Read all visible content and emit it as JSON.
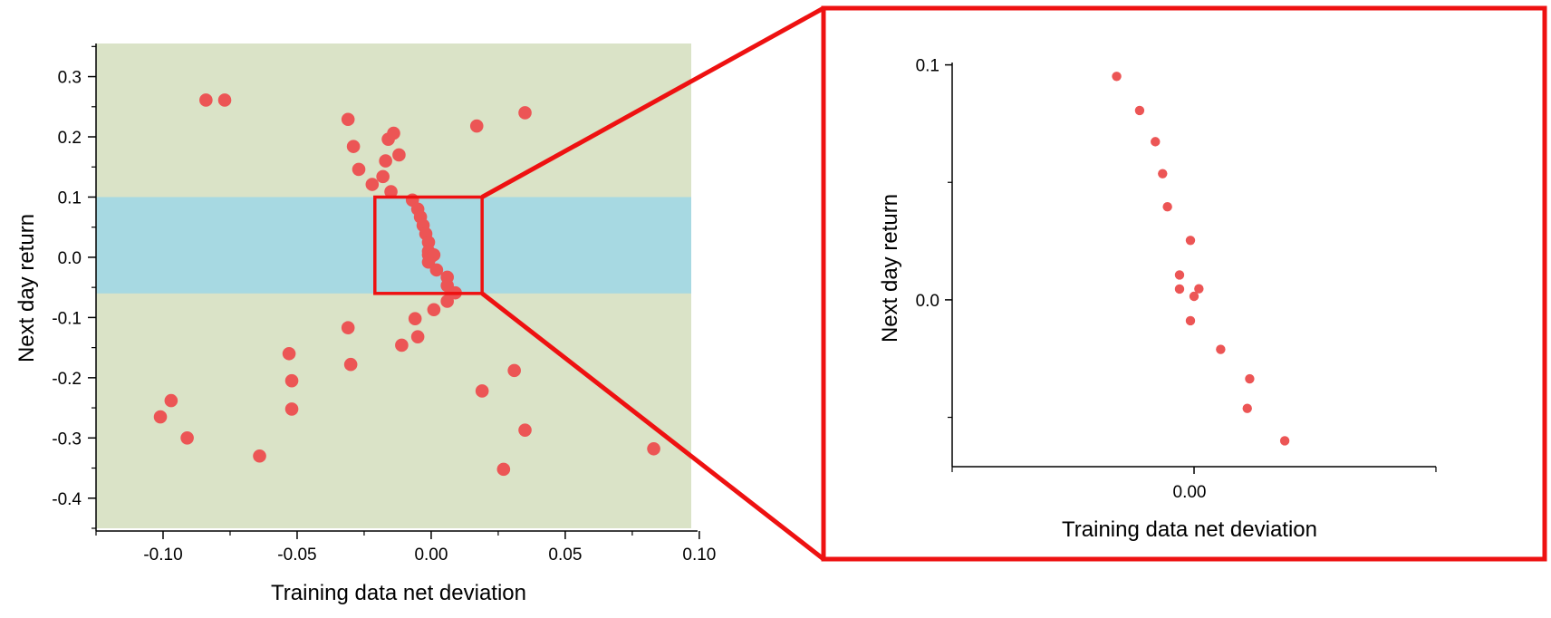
{
  "chart_data": [
    {
      "type": "scatter",
      "panel": "main",
      "xlabel": "Training data net deviation",
      "ylabel": "Next day return",
      "xlim": [
        -0.125,
        0.097
      ],
      "ylim": [
        -0.45,
        0.355
      ],
      "x_ticks": [
        -0.1,
        -0.05,
        0.0,
        0.05,
        0.1
      ],
      "x_tick_labels": [
        "-0.10",
        "-0.05",
        "0.00",
        "0.05",
        "0.10"
      ],
      "y_ticks": [
        0.3,
        0.2,
        0.1,
        0.0,
        -0.1,
        -0.2,
        -0.3,
        -0.4
      ],
      "y_tick_labels": [
        "0.3",
        "0.2",
        "0.1",
        "0.0",
        "-0.1",
        "-0.2",
        "-0.3",
        "-0.4"
      ],
      "background_color": "#dae3c7",
      "band": {
        "y0": -0.06,
        "y1": 0.1,
        "color": "#a7d9e2"
      },
      "zoom_box": {
        "x0": -0.021,
        "x1": 0.019,
        "y0": -0.06,
        "y1": 0.1,
        "color": "#ee1111"
      },
      "marker_color": "#ec5555",
      "grid": false,
      "points": [
        [
          -0.084,
          0.261
        ],
        [
          -0.077,
          0.261
        ],
        [
          -0.101,
          -0.265
        ],
        [
          -0.097,
          -0.238
        ],
        [
          -0.091,
          -0.3
        ],
        [
          -0.064,
          -0.33
        ],
        [
          -0.053,
          -0.16
        ],
        [
          -0.052,
          -0.205
        ],
        [
          -0.052,
          -0.252
        ],
        [
          -0.031,
          0.229
        ],
        [
          -0.029,
          0.184
        ],
        [
          -0.027,
          0.146
        ],
        [
          -0.031,
          -0.117
        ],
        [
          -0.03,
          -0.178
        ],
        [
          -0.022,
          0.121
        ],
        [
          -0.018,
          0.134
        ],
        [
          -0.017,
          0.16
        ],
        [
          -0.016,
          0.196
        ],
        [
          -0.014,
          0.206
        ],
        [
          -0.015,
          0.109
        ],
        [
          -0.012,
          0.17
        ],
        [
          -0.011,
          -0.146
        ],
        [
          -0.007,
          0.095
        ],
        [
          -0.006,
          -0.102
        ],
        [
          -0.005,
          -0.132
        ],
        [
          -0.005,
          0.08
        ],
        [
          -0.004,
          0.067
        ],
        [
          -0.003,
          0.053
        ],
        [
          -0.002,
          0.039
        ],
        [
          -0.001,
          0.025
        ],
        [
          -0.001,
          0.01
        ],
        [
          -0.001,
          0.004
        ],
        [
          0.0,
          0.001
        ],
        [
          0.001,
          0.004
        ],
        [
          -0.001,
          -0.008
        ],
        [
          0.002,
          -0.021
        ],
        [
          0.006,
          -0.033
        ],
        [
          0.006,
          -0.047
        ],
        [
          0.006,
          -0.073
        ],
        [
          0.009,
          -0.059
        ],
        [
          0.001,
          -0.087
        ],
        [
          0.017,
          0.218
        ],
        [
          0.019,
          -0.222
        ],
        [
          0.027,
          -0.352
        ],
        [
          0.031,
          -0.188
        ],
        [
          0.035,
          0.24
        ],
        [
          0.035,
          -0.287
        ],
        [
          0.083,
          -0.318
        ]
      ]
    },
    {
      "type": "scatter",
      "panel": "zoom",
      "xlabel": "Training data net deviation",
      "ylabel": "Next day return",
      "xlim": [
        -0.02,
        0.02
      ],
      "ylim": [
        -0.071,
        0.101
      ],
      "x_ticks": [
        0.0
      ],
      "x_tick_labels": [
        "0.00"
      ],
      "y_ticks": [
        0.1,
        0.0
      ],
      "y_tick_labels": [
        "0.1",
        "0.0"
      ],
      "y_minor_ticks": [
        0.05,
        -0.05
      ],
      "marker_color": "#ec5555",
      "frame_color": "#ee1111",
      "grid": false,
      "points": [
        [
          -0.0064,
          0.0951
        ],
        [
          -0.0045,
          0.0806
        ],
        [
          -0.0032,
          0.0673
        ],
        [
          -0.0026,
          0.0537
        ],
        [
          -0.0022,
          0.0396
        ],
        [
          -0.0003,
          0.0253
        ],
        [
          -0.0012,
          0.0106
        ],
        [
          -0.0012,
          0.0046
        ],
        [
          0.0,
          0.0015
        ],
        [
          0.0004,
          0.0047
        ],
        [
          -0.0003,
          -0.0089
        ],
        [
          0.0022,
          -0.0211
        ],
        [
          0.0046,
          -0.0336
        ],
        [
          0.0044,
          -0.0462
        ],
        [
          0.0075,
          -0.06
        ]
      ]
    }
  ]
}
